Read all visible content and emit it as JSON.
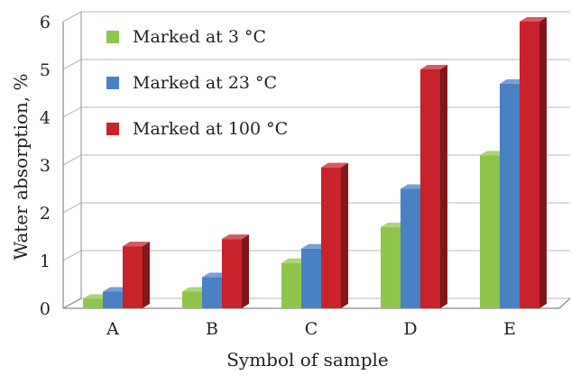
{
  "chart_data": {
    "type": "bar",
    "title": "",
    "xlabel": "Symbol of sample",
    "ylabel": "Water absorption, %",
    "categories": [
      "A",
      "B",
      "C",
      "D",
      "E"
    ],
    "ylim": [
      0,
      6
    ],
    "yticks": [
      "0",
      "1",
      "2",
      "3",
      "4",
      "5",
      "6"
    ],
    "grid": true,
    "legend_position": "top-left",
    "style": "3d-clustered",
    "series": [
      {
        "name": "Marked at 3 °C",
        "color": "#8fc54a",
        "values": [
          0.2,
          0.35,
          0.95,
          1.7,
          3.2
        ]
      },
      {
        "name": "Marked at 23 °C",
        "color": "#4a80c4",
        "values": [
          0.35,
          0.65,
          1.25,
          2.5,
          4.7
        ]
      },
      {
        "name": "Marked at 100 °C",
        "color": "#c8222a",
        "values": [
          1.3,
          1.45,
          2.95,
          5.0,
          6.0
        ]
      }
    ]
  }
}
